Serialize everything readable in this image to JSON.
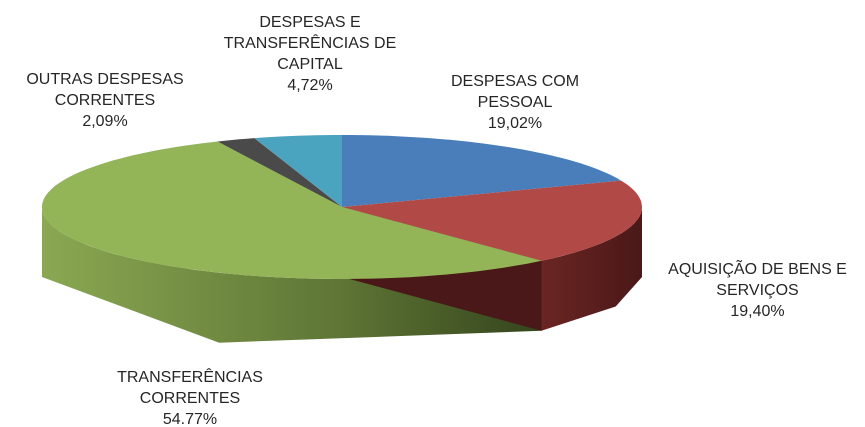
{
  "chart_data": {
    "type": "pie3d",
    "categories": [
      "DESPESAS COM PESSOAL",
      "AQUISIÇÃO DE BENS E SERVIÇOS",
      "TRANSFERÊNCIAS CORRENTES",
      "OUTRAS DESPESAS CORRENTES",
      "DESPESAS E TRANSFERÊNCIAS DE CAPITAL"
    ],
    "values": [
      19.02,
      19.4,
      54.77,
      2.09,
      4.72
    ],
    "value_labels": [
      "19,02%",
      "19,40%",
      "54.77%",
      "2,09%",
      "4,72%"
    ],
    "colors": [
      "#4a7ebb",
      "#b14a47",
      "#93b558",
      "#4a4a4a",
      "#4aa3bf"
    ]
  }
}
